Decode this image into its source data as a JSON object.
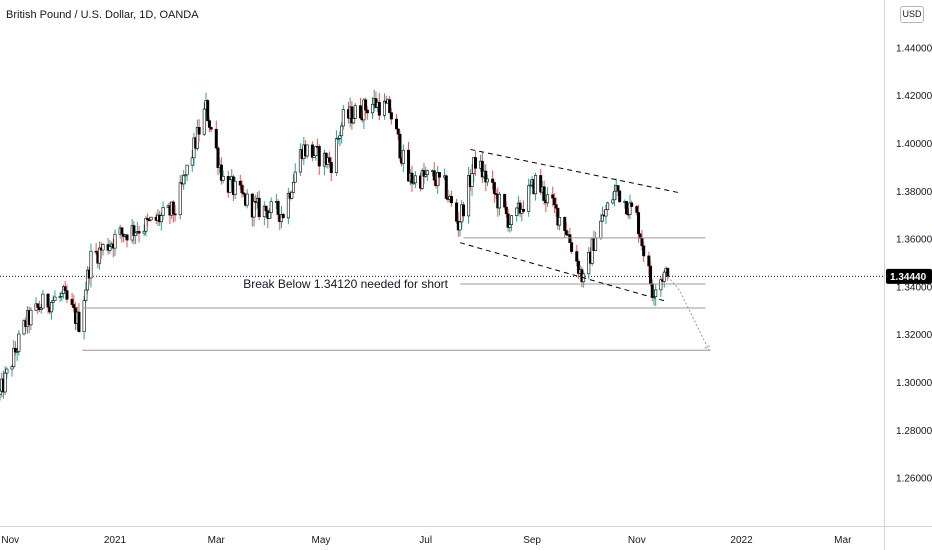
{
  "header": {
    "symbol_title": "British Pound / U.S. Dollar, 1D, OANDA",
    "currency_button": "USD"
  },
  "colors": {
    "up_body": "#ffffff",
    "up_wick": "#26a69a",
    "down_body": "#000000",
    "down_wick": "#ef5350",
    "candle_outline": "#000000",
    "price_tag_bg": "#000000",
    "support_line": "#9a9a9a",
    "channel_line": "#000000",
    "projection_line": "#9a9a9a"
  },
  "chart_data": {
    "type": "candlestick",
    "title": "British Pound / U.S. Dollar, 1D, OANDA",
    "ylim": [
      1.24,
      1.46
    ],
    "y_ticks": [
      {
        "value": 1.26,
        "label": "1.26000"
      },
      {
        "value": 1.28,
        "label": "1.28000"
      },
      {
        "value": 1.3,
        "label": "1.30000"
      },
      {
        "value": 1.32,
        "label": "1.32000"
      },
      {
        "value": 1.34,
        "label": "1.34000"
      },
      {
        "value": 1.36,
        "label": "1.36000"
      },
      {
        "value": 1.38,
        "label": "1.38000"
      },
      {
        "value": 1.4,
        "label": "1.40000"
      },
      {
        "value": 1.42,
        "label": "1.42000"
      },
      {
        "value": 1.44,
        "label": "1.44000"
      }
    ],
    "x_range": [
      "2020-10-26",
      "2022-03-25"
    ],
    "x_ticks": [
      {
        "date": "2020-11-01",
        "label": "Nov"
      },
      {
        "date": "2021-01-01",
        "label": "2021"
      },
      {
        "date": "2021-03-01",
        "label": "Mar"
      },
      {
        "date": "2021-05-01",
        "label": "May"
      },
      {
        "date": "2021-07-01",
        "label": "Jul"
      },
      {
        "date": "2021-09-01",
        "label": "Sep"
      },
      {
        "date": "2021-11-01",
        "label": "Nov"
      },
      {
        "date": "2022-01-01",
        "label": "2022"
      },
      {
        "date": "2022-03-01",
        "label": "Mar"
      }
    ],
    "last_price": {
      "value": 1.3444,
      "label": "1.34440"
    },
    "trend_points": [
      [
        "2020-10-26",
        1.295
      ],
      [
        "2020-11-10",
        1.325
      ],
      [
        "2020-11-20",
        1.333
      ],
      [
        "2020-12-02",
        1.336
      ],
      [
        "2020-12-11",
        1.325
      ],
      [
        "2020-12-18",
        1.352
      ],
      [
        "2021-01-04",
        1.362
      ],
      [
        "2021-01-20",
        1.366
      ],
      [
        "2021-02-05",
        1.372
      ],
      [
        "2021-02-23",
        1.415
      ],
      [
        "2021-03-05",
        1.385
      ],
      [
        "2021-03-23",
        1.373
      ],
      [
        "2021-04-09",
        1.371
      ],
      [
        "2021-04-20",
        1.398
      ],
      [
        "2021-05-07",
        1.392
      ],
      [
        "2021-05-14",
        1.41
      ],
      [
        "2021-06-01",
        1.417
      ],
      [
        "2021-06-10",
        1.414
      ],
      [
        "2021-06-21",
        1.385
      ],
      [
        "2021-07-05",
        1.386
      ],
      [
        "2021-07-12",
        1.382
      ],
      [
        "2021-07-20",
        1.366
      ],
      [
        "2021-07-30",
        1.393
      ],
      [
        "2021-08-20",
        1.366
      ],
      [
        "2021-09-03",
        1.384
      ],
      [
        "2021-09-20",
        1.366
      ],
      [
        "2021-10-01",
        1.342
      ],
      [
        "2021-10-08",
        1.362
      ],
      [
        "2021-10-20",
        1.381
      ],
      [
        "2021-11-01",
        1.369
      ],
      [
        "2021-11-10",
        1.339
      ],
      [
        "2021-11-16",
        1.345
      ],
      [
        "2021-11-19",
        1.3444
      ]
    ],
    "annotations": [
      {
        "type": "text",
        "text": "Break Below 1.34120 needed for short",
        "date": "2021-07-14",
        "value": 1.3412
      },
      {
        "type": "hline",
        "value": 1.3412,
        "from": "2021-07-21",
        "to": "2021-12-11"
      },
      {
        "type": "hline",
        "value": 1.3312,
        "from": "2020-12-13",
        "to": "2021-12-11"
      },
      {
        "type": "hline",
        "value": 1.3135,
        "from": "2020-12-13",
        "to": "2021-12-14"
      },
      {
        "type": "hline",
        "value": 1.3605,
        "from": "2021-07-23",
        "to": "2021-12-11"
      },
      {
        "type": "trendline",
        "style": "dashed",
        "from": [
          "2021-07-27",
          1.3975
        ],
        "to": [
          "2021-11-25",
          1.3795
        ]
      },
      {
        "type": "trendline",
        "style": "dashed",
        "from": [
          "2021-07-21",
          1.3585
        ],
        "to": [
          "2021-11-18",
          1.334
        ]
      },
      {
        "type": "projection",
        "style": "dotted",
        "points": [
          [
            "2021-11-19",
            1.3444
          ],
          [
            "2021-11-26",
            1.3385
          ],
          [
            "2021-12-13",
            1.3135
          ]
        ]
      }
    ]
  }
}
